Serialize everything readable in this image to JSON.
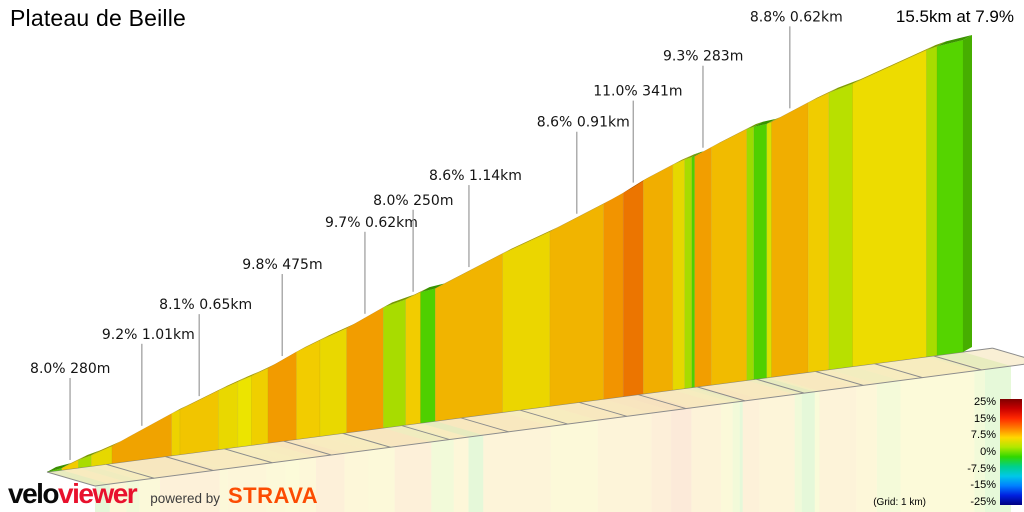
{
  "title": "Plateau de Beille",
  "summary": "15.5km at 7.9%",
  "legend": {
    "tick_labels": [
      "25%",
      "15%",
      "7.5%",
      "0%",
      "-7.5%",
      "-15%",
      "-25%"
    ],
    "grid_note": "(Grid: 1 km)",
    "gradient_stops": [
      "#7f0000",
      "#c80000",
      "#ff2800",
      "#ff7c00",
      "#ffd800",
      "#b0e800",
      "#30d800",
      "#00d08c",
      "#00c8e8",
      "#0080ff",
      "#0020e0",
      "#000080"
    ]
  },
  "branding": {
    "logo_black": "velo",
    "logo_red": "viewer",
    "powered_by": "powered by",
    "strava": "STRAVA"
  },
  "chart_data": {
    "type": "area",
    "title": "Plateau de Beille",
    "total_distance_km": 15.5,
    "avg_gradient_pct": 7.9,
    "grid_interval_km": 1,
    "gradient_color_scale_pct": [
      -25,
      25
    ],
    "segments": [
      {
        "len_km": 0.25,
        "grad_pct": 3.0,
        "color": "#55cc00"
      },
      {
        "len_km": 0.28,
        "grad_pct": 8.0,
        "color": "#f2cc00"
      },
      {
        "len_km": 0.22,
        "grad_pct": 5.0,
        "color": "#a8dc00"
      },
      {
        "len_km": 0.35,
        "grad_pct": 7.0,
        "color": "#e6d800"
      },
      {
        "len_km": 1.01,
        "grad_pct": 9.2,
        "color": "#f0a300"
      },
      {
        "len_km": 0.14,
        "grad_pct": 7.5,
        "color": "#edd200"
      },
      {
        "len_km": 0.65,
        "grad_pct": 8.1,
        "color": "#f1c500"
      },
      {
        "len_km": 0.33,
        "grad_pct": 7.2,
        "color": "#e9d800"
      },
      {
        "len_km": 0.23,
        "grad_pct": 6.5,
        "color": "#ece400"
      },
      {
        "len_km": 0.28,
        "grad_pct": 7.6,
        "color": "#efcf00"
      },
      {
        "len_km": 0.48,
        "grad_pct": 9.8,
        "color": "#f29b00"
      },
      {
        "len_km": 0.4,
        "grad_pct": 8.0,
        "color": "#f2cc00"
      },
      {
        "len_km": 0.45,
        "grad_pct": 7.2,
        "color": "#e9d800"
      },
      {
        "len_km": 0.62,
        "grad_pct": 9.7,
        "color": "#f29d00"
      },
      {
        "len_km": 0.38,
        "grad_pct": 5.0,
        "color": "#a8dc00"
      },
      {
        "len_km": 0.25,
        "grad_pct": 8.0,
        "color": "#f2cc00"
      },
      {
        "len_km": 0.25,
        "grad_pct": 2.5,
        "color": "#4fd000"
      },
      {
        "len_km": 1.14,
        "grad_pct": 8.6,
        "color": "#f1b400"
      },
      {
        "len_km": 0.8,
        "grad_pct": 7.4,
        "color": "#ebd600"
      },
      {
        "len_km": 0.91,
        "grad_pct": 8.6,
        "color": "#f1b400"
      },
      {
        "len_km": 0.33,
        "grad_pct": 9.5,
        "color": "#f29400"
      },
      {
        "len_km": 0.34,
        "grad_pct": 11.0,
        "color": "#ec7500"
      },
      {
        "len_km": 0.5,
        "grad_pct": 8.8,
        "color": "#f1ae00"
      },
      {
        "len_km": 0.2,
        "grad_pct": 7.0,
        "color": "#e6d800"
      },
      {
        "len_km": 0.12,
        "grad_pct": 5.0,
        "color": "#a8dc00"
      },
      {
        "len_km": 0.05,
        "grad_pct": 2.0,
        "color": "#4fd000"
      },
      {
        "len_km": 0.28,
        "grad_pct": 9.3,
        "color": "#f29e00"
      },
      {
        "len_km": 0.6,
        "grad_pct": 8.4,
        "color": "#f1bb00"
      },
      {
        "len_km": 0.12,
        "grad_pct": 4.5,
        "color": "#9adc00"
      },
      {
        "len_km": 0.22,
        "grad_pct": 2.0,
        "color": "#4fd000"
      },
      {
        "len_km": 0.08,
        "grad_pct": 6.0,
        "color": "#d8e200"
      },
      {
        "len_km": 0.62,
        "grad_pct": 8.8,
        "color": "#f1ae00"
      },
      {
        "len_km": 0.35,
        "grad_pct": 7.8,
        "color": "#f0cc00"
      },
      {
        "len_km": 0.4,
        "grad_pct": 5.5,
        "color": "#b8e000"
      },
      {
        "len_km": 1.25,
        "grad_pct": 7.2,
        "color": "#eddc00"
      },
      {
        "len_km": 0.18,
        "grad_pct": 5.0,
        "color": "#a8dc00"
      },
      {
        "len_km": 0.44,
        "grad_pct": 2.5,
        "color": "#55d400"
      }
    ],
    "annotations": [
      {
        "label": "8.0% 280m",
        "segment_index": 1
      },
      {
        "label": "9.2% 1.01km",
        "segment_index": 4
      },
      {
        "label": "8.1% 0.65km",
        "segment_index": 6
      },
      {
        "label": "9.8% 475m",
        "segment_index": 10
      },
      {
        "label": "9.7% 0.62km",
        "segment_index": 13
      },
      {
        "label": "8.0% 250m",
        "segment_index": 15
      },
      {
        "label": "8.6% 1.14km",
        "segment_index": 17
      },
      {
        "label": "8.6% 0.91km",
        "segment_index": 19
      },
      {
        "label": "11.0% 341m",
        "segment_index": 21
      },
      {
        "label": "9.3% 283m",
        "segment_index": 26
      },
      {
        "label": "8.8% 0.62km",
        "segment_index": 31
      }
    ]
  }
}
